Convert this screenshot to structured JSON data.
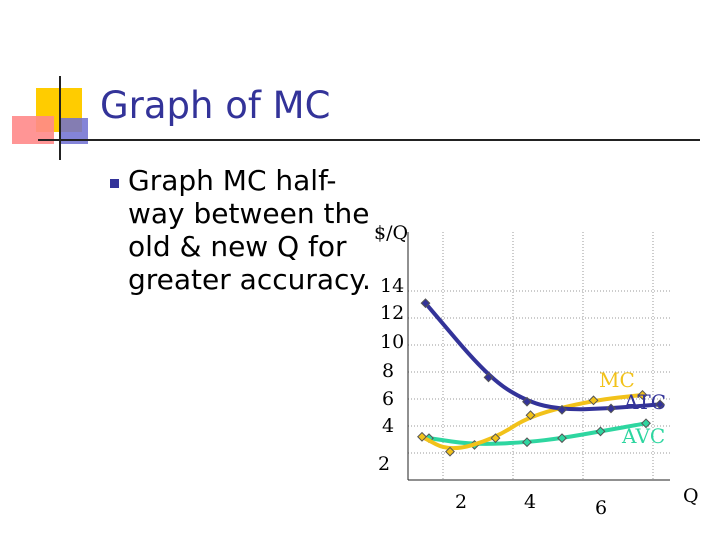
{
  "slide": {
    "title": "Graph of MC",
    "bullet": "Graph MC half-way between the old & new Q for greater accuracy."
  },
  "colors": {
    "title": "#333399",
    "bullet": "#333399",
    "mc": "#f2c21a",
    "atc": "#333399",
    "avc": "#2ed6a0",
    "deco_yellow": "#ffcc00",
    "deco_pink": "#ff8a8a",
    "deco_blue": "#6f6fd1"
  },
  "chart_data": {
    "type": "line",
    "ylabel": "$/Q",
    "xlabel": "Q",
    "y_ticks": [
      "14",
      "12",
      "10",
      "8",
      "6",
      "4",
      "2"
    ],
    "x_ticks": [
      "2",
      "4",
      "6"
    ],
    "series": [
      {
        "name": "MC",
        "color": "#f2c21a",
        "points": [
          [
            0.4,
            3.2
          ],
          [
            1.2,
            2.1
          ],
          [
            2.5,
            3.1
          ],
          [
            3.5,
            4.8
          ],
          [
            5.3,
            5.9
          ],
          [
            6.7,
            6.3
          ]
        ]
      },
      {
        "name": "ATC",
        "color": "#333399",
        "points": [
          [
            0.5,
            13.1
          ],
          [
            2.3,
            7.6
          ],
          [
            3.4,
            5.8
          ],
          [
            4.4,
            5.2
          ],
          [
            5.8,
            5.3
          ],
          [
            7.2,
            5.6
          ]
        ]
      },
      {
        "name": "AVC",
        "color": "#2ed6a0",
        "points": [
          [
            0.6,
            3.1
          ],
          [
            1.9,
            2.6
          ],
          [
            3.4,
            2.8
          ],
          [
            4.4,
            3.1
          ],
          [
            5.5,
            3.6
          ],
          [
            6.8,
            4.2
          ]
        ]
      }
    ]
  }
}
